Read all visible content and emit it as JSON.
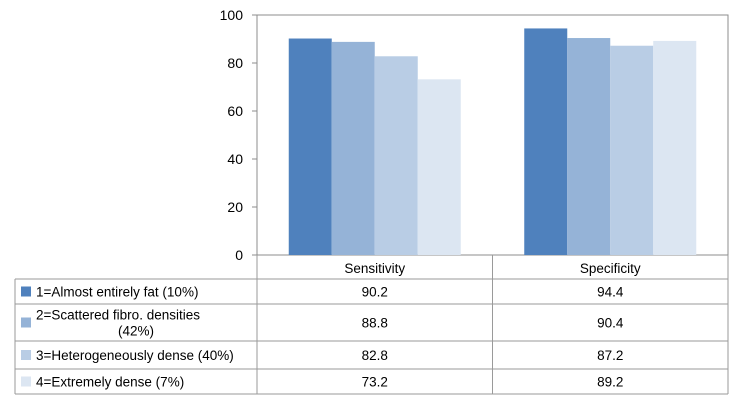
{
  "chart_data": {
    "type": "bar",
    "categories": [
      "Sensitivity",
      "Specificity"
    ],
    "series": [
      {
        "name": "1=Almost entirely fat (10%)",
        "name_lines": [
          "1=Almost entirely fat (10%)"
        ],
        "values": [
          90.2,
          94.4
        ],
        "color": "#4f81bd"
      },
      {
        "name": "2=Scattered fibro. densities (42%)",
        "name_lines": [
          "2=Scattered fibro. densities",
          "(42%)"
        ],
        "values": [
          88.8,
          90.4
        ],
        "color": "#95b3d7"
      },
      {
        "name": "3=Heterogeneously dense (40%)",
        "name_lines": [
          "3=Heterogeneously dense (40%)"
        ],
        "values": [
          82.8,
          87.2
        ],
        "color": "#b9cde5"
      },
      {
        "name": "4=Extremely dense (7%)",
        "name_lines": [
          "4=Extremely dense (7%)"
        ],
        "values": [
          73.2,
          89.2
        ],
        "color": "#dce6f2"
      }
    ],
    "y_ticks": [
      "0",
      "20",
      "40",
      "60",
      "80",
      "100"
    ],
    "ylim": [
      0,
      100
    ],
    "grid": false,
    "legend": "data-table-left"
  }
}
